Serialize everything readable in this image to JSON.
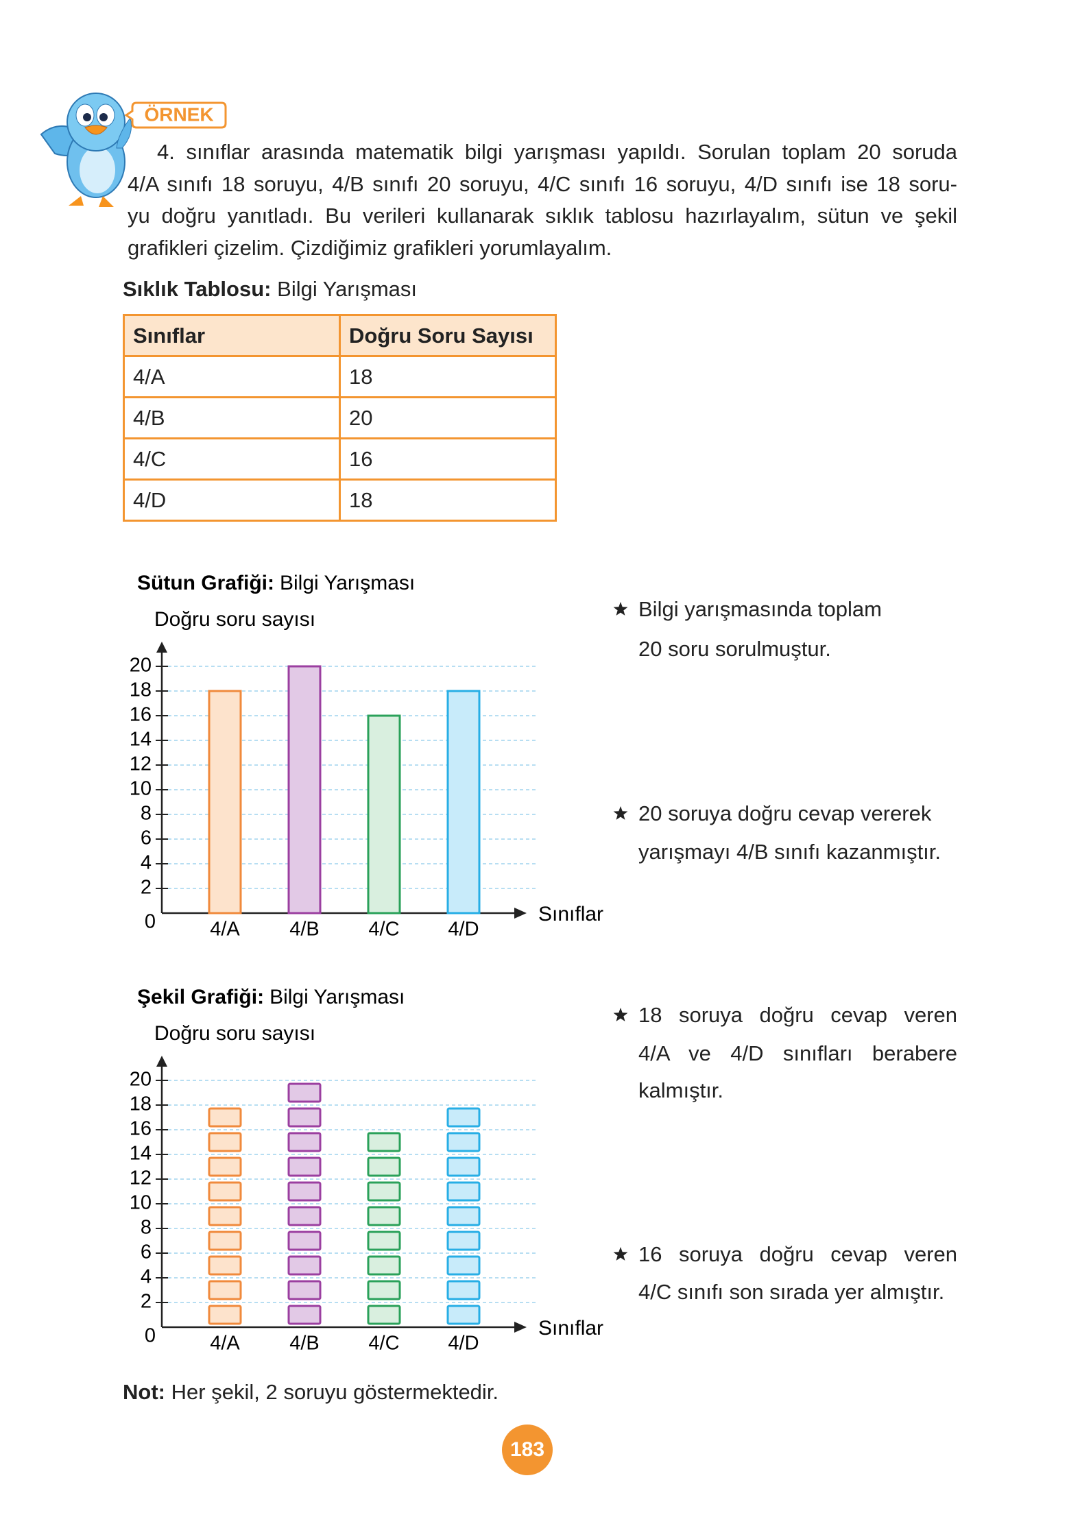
{
  "header": {
    "badge": "ÖRNEK"
  },
  "intro": {
    "lines": [
      "4. sınıflar arasında matematik bilgi yarışması yapıldı. Sorulan toplam 20 soruda",
      "4/A sınıfı 18 soruyu, 4/B sınıfı 20 soruyu, 4/C sınıfı 16 soruyu, 4/D sınıfı ise 18 soru-",
      "yu doğru yanıtladı. Bu verileri kullanarak sıklık tablosu hazırlayalım, sütun ve şekil",
      "grafikleri çizelim. Çizdiğimiz grafikleri yorumlayalım."
    ]
  },
  "table": {
    "caption_bold": "Sıklık Tablosu:",
    "caption": "Bilgi Yarışması",
    "header": [
      "Sınıflar",
      "Doğru Soru Sayısı"
    ],
    "rows": [
      [
        "4/A",
        18
      ],
      [
        "4/B",
        20
      ],
      [
        "4/C",
        16
      ],
      [
        "4/D",
        18
      ]
    ]
  },
  "chart_data": [
    {
      "type": "bar",
      "title_bold": "Sütun Grafiği:",
      "title": "Bilgi Yarışması",
      "y_label": "Doğru soru sayısı",
      "x_label": "Sınıflar",
      "categories": [
        "4/A",
        "4/B",
        "4/C",
        "4/D"
      ],
      "values": [
        18,
        20,
        16,
        18
      ],
      "colors": [
        "#f08a3c",
        "#9b3fa0",
        "#2aa15a",
        "#27aee5"
      ],
      "fill_colors": [
        "#fde3cc",
        "#e2c9e6",
        "#d9efdf",
        "#c8ebfa"
      ],
      "ylim": [
        0,
        20
      ],
      "yticks": [
        0,
        2,
        4,
        6,
        8,
        10,
        12,
        14,
        16,
        18,
        20
      ],
      "grid": true
    },
    {
      "type": "pictograph",
      "title_bold": "Şekil Grafiği:",
      "title": "Bilgi Yarışması",
      "y_label": "Doğru soru sayısı",
      "x_label": "Sınıflar",
      "categories": [
        "4/A",
        "4/B",
        "4/C",
        "4/D"
      ],
      "values": [
        18,
        20,
        16,
        18
      ],
      "colors": [
        "#f08a3c",
        "#9b3fa0",
        "#2aa15a",
        "#27aee5"
      ],
      "fill_colors": [
        "#fde3cc",
        "#e2c9e6",
        "#d9efdf",
        "#c8ebfa"
      ],
      "ylim": [
        0,
        20
      ],
      "yticks": [
        0,
        2,
        4,
        6,
        8,
        10,
        12,
        14,
        16,
        18,
        20
      ],
      "grid": true
    }
  ],
  "notes": [
    {
      "lines": [
        "Bilgi yarışmasında toplam",
        "20 soru sorulmuştur."
      ]
    },
    {
      "lines": [
        "20 soruya doğru cevap vererek",
        "yarışmayı 4/B sınıfı kazanmıştır."
      ]
    },
    {
      "lines": [
        "18 soruya doğru cevap veren",
        "4/A ve 4/D sınıfları berabere",
        "kalmıştır."
      ]
    },
    {
      "lines": [
        "16 soruya doğru cevap veren",
        "4/C sınıfı son sırada yer almıştır."
      ]
    }
  ],
  "footnote": {
    "label": "Not:",
    "text_before": "Her şekil,",
    "value": 2,
    "text_after": "soruyu göstermektedir."
  },
  "page_number": "183"
}
